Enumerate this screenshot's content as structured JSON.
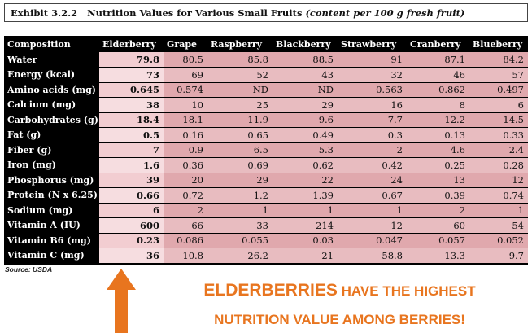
{
  "exhibit": {
    "number": "Exhibit 3.2.2",
    "title": "Nutrition Values for Various Small Fruits",
    "subtitle": "(content per 100 g fresh fruit)"
  },
  "table": {
    "headers": [
      "Composition",
      "Elderberry",
      "Grape",
      "Raspberry",
      "Blackberry",
      "Strawberry",
      "Cranberry",
      "Blueberry"
    ],
    "rows": [
      {
        "label": "Water",
        "values": [
          "79.8",
          "80.5",
          "85.8",
          "88.5",
          "91",
          "87.1",
          "84.2"
        ]
      },
      {
        "label": "Energy (kcal)",
        "values": [
          "73",
          "69",
          "52",
          "43",
          "32",
          "46",
          "57"
        ]
      },
      {
        "label": "Amino acids (mg)",
        "values": [
          "0.645",
          "0.574",
          "ND",
          "ND",
          "0.563",
          "0.862",
          "0.497"
        ]
      },
      {
        "label": "Calcium (mg)",
        "values": [
          "38",
          "10",
          "25",
          "29",
          "16",
          "8",
          "6"
        ]
      },
      {
        "label": "Carbohydrates (g)",
        "values": [
          "18.4",
          "18.1",
          "11.9",
          "9.6",
          "7.7",
          "12.2",
          "14.5"
        ]
      },
      {
        "label": "Fat (g)",
        "values": [
          "0.5",
          "0.16",
          "0.65",
          "0.49",
          "0.3",
          "0.13",
          "0.33"
        ]
      },
      {
        "label": "Fiber (g)",
        "values": [
          "7",
          "0.9",
          "6.5",
          "5.3",
          "2",
          "4.6",
          "2.4"
        ]
      },
      {
        "label": "Iron (mg)",
        "values": [
          "1.6",
          "0.36",
          "0.69",
          "0.62",
          "0.42",
          "0.25",
          "0.28"
        ]
      },
      {
        "label": "Phosphorus (mg)",
        "values": [
          "39",
          "20",
          "29",
          "22",
          "24",
          "13",
          "12"
        ]
      },
      {
        "label": "Protein (N x 6.25)",
        "values": [
          "0.66",
          "0.72",
          "1.2",
          "1.39",
          "0.67",
          "0.39",
          "0.74"
        ]
      },
      {
        "label": "Sodium (mg)",
        "values": [
          "6",
          "2",
          "1",
          "1",
          "1",
          "2",
          "1"
        ]
      },
      {
        "label": "Vitamin A (IU)",
        "values": [
          "600",
          "66",
          "33",
          "214",
          "12",
          "60",
          "54"
        ]
      },
      {
        "label": "Vitamin B6 (mg)",
        "values": [
          "0.23",
          "0.086",
          "0.055",
          "0.03",
          "0.047",
          "0.057",
          "0.052"
        ]
      },
      {
        "label": "Vitamin C (mg)",
        "values": [
          "36",
          "10.8",
          "26.2",
          "21",
          "58.8",
          "13.3",
          "9.7"
        ]
      }
    ]
  },
  "source": "Source:  USDA",
  "callout": {
    "arrow_icon": "up-arrow-icon",
    "line1_big": "ELDERBERRIES",
    "line1_small": " HAVE THE HIGHEST",
    "line2": "NUTRITION VALUE AMONG BERRIES!",
    "color": "#e8751f"
  }
}
